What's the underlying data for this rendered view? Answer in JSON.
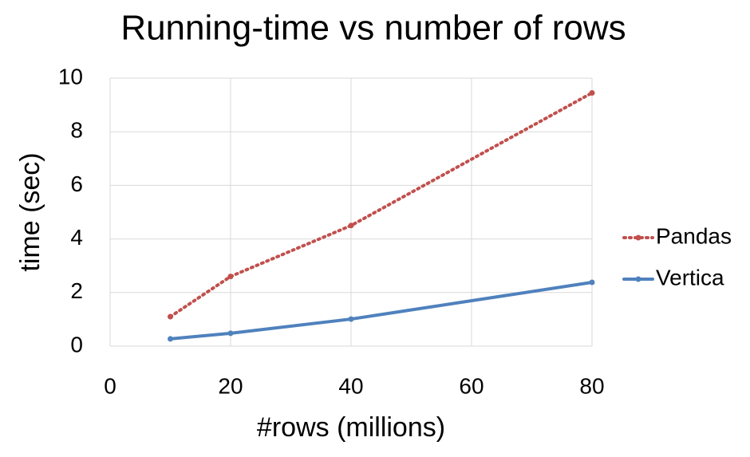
{
  "chart_data": {
    "type": "line",
    "title": "Running-time vs number of rows",
    "x_label": "#rows (millions)",
    "y_label": "time (sec)",
    "x": [
      10,
      20,
      40,
      80
    ],
    "series": [
      {
        "name": "Pandas",
        "color": "#c0504d",
        "dash": "dotted",
        "values": [
          1.1,
          2.6,
          4.5,
          9.45
        ]
      },
      {
        "name": "Vertica",
        "color": "#4f81bd",
        "dash": "solid",
        "values": [
          0.27,
          0.48,
          1.01,
          2.38
        ]
      }
    ],
    "xlim": [
      0,
      80
    ],
    "xticks": [
      0,
      20,
      40,
      60,
      80
    ],
    "ylim": [
      0,
      10
    ],
    "yticks": [
      0,
      2,
      4,
      6,
      8,
      10
    ],
    "grid": true,
    "legend": "right"
  }
}
